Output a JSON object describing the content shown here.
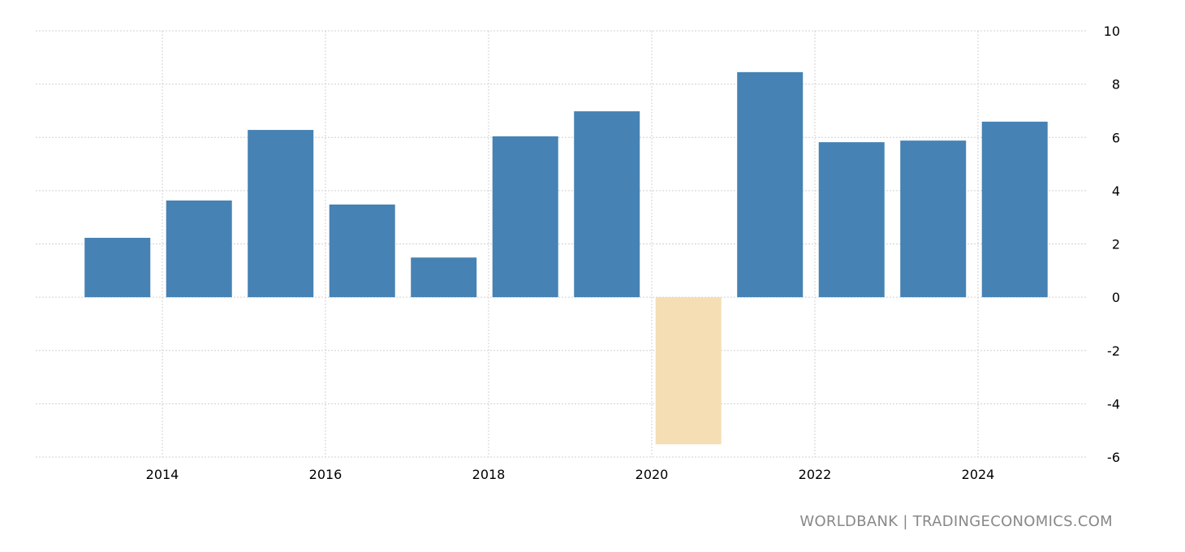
{
  "chart_data": {
    "type": "bar",
    "title": "",
    "xlabel": "",
    "ylabel": "",
    "categories": [
      "2013",
      "2014",
      "2015",
      "2016",
      "2017",
      "2018",
      "2019",
      "2020",
      "2021",
      "2022",
      "2023",
      "2024"
    ],
    "values": [
      2.23,
      3.63,
      6.28,
      3.48,
      1.49,
      6.04,
      6.98,
      -5.52,
      8.45,
      5.82,
      5.88,
      6.59
    ],
    "ylim": [
      -6,
      10
    ],
    "yticks": [
      10,
      8,
      6,
      4,
      2,
      0,
      -2,
      -4,
      -6
    ],
    "xticks": [
      "2014",
      "2016",
      "2018",
      "2020",
      "2022",
      "2024"
    ],
    "grid": true,
    "y_axis_side": "right",
    "colors": {
      "positive": "#4682b4",
      "negative": "#f5deb3",
      "grid": "#d0d0d0"
    }
  },
  "footer": {
    "source": "WORLDBANK | TRADINGECONOMICS.COM"
  }
}
